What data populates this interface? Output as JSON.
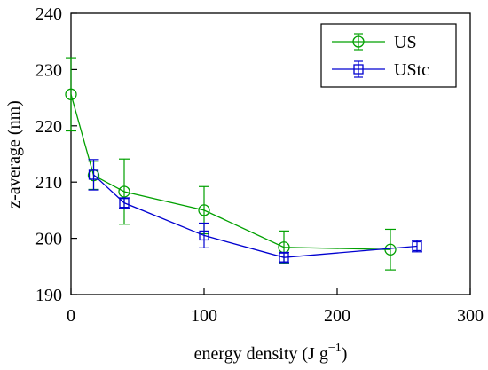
{
  "chart_data": {
    "type": "line",
    "title": "",
    "xlabel": "energy density (J g",
    "xlabel_sup": "−1",
    "xlabel_close": ")",
    "ylabel": "z-average (nm)",
    "xlim": [
      0,
      300
    ],
    "ylim": [
      190,
      240
    ],
    "xticks": [
      0,
      100,
      200,
      300
    ],
    "yticks": [
      190,
      200,
      210,
      220,
      230,
      240
    ],
    "grid": false,
    "legend_position": "top-right",
    "series": [
      {
        "name": "US",
        "color": "#00a000",
        "marker": "circle",
        "x": [
          0,
          17,
          40,
          100,
          160,
          240
        ],
        "y": [
          225.6,
          211.2,
          208.3,
          205.0,
          198.4,
          198.0
        ],
        "err": [
          6.5,
          2.5,
          5.8,
          4.2,
          2.9,
          3.6
        ]
      },
      {
        "name": "UStc",
        "color": "#0000d0",
        "marker": "square",
        "x": [
          17,
          40,
          100,
          160,
          260
        ],
        "y": [
          211.3,
          206.3,
          200.5,
          196.6,
          198.6
        ],
        "err": [
          2.7,
          0.9,
          2.2,
          0.9,
          1.0
        ]
      }
    ]
  }
}
